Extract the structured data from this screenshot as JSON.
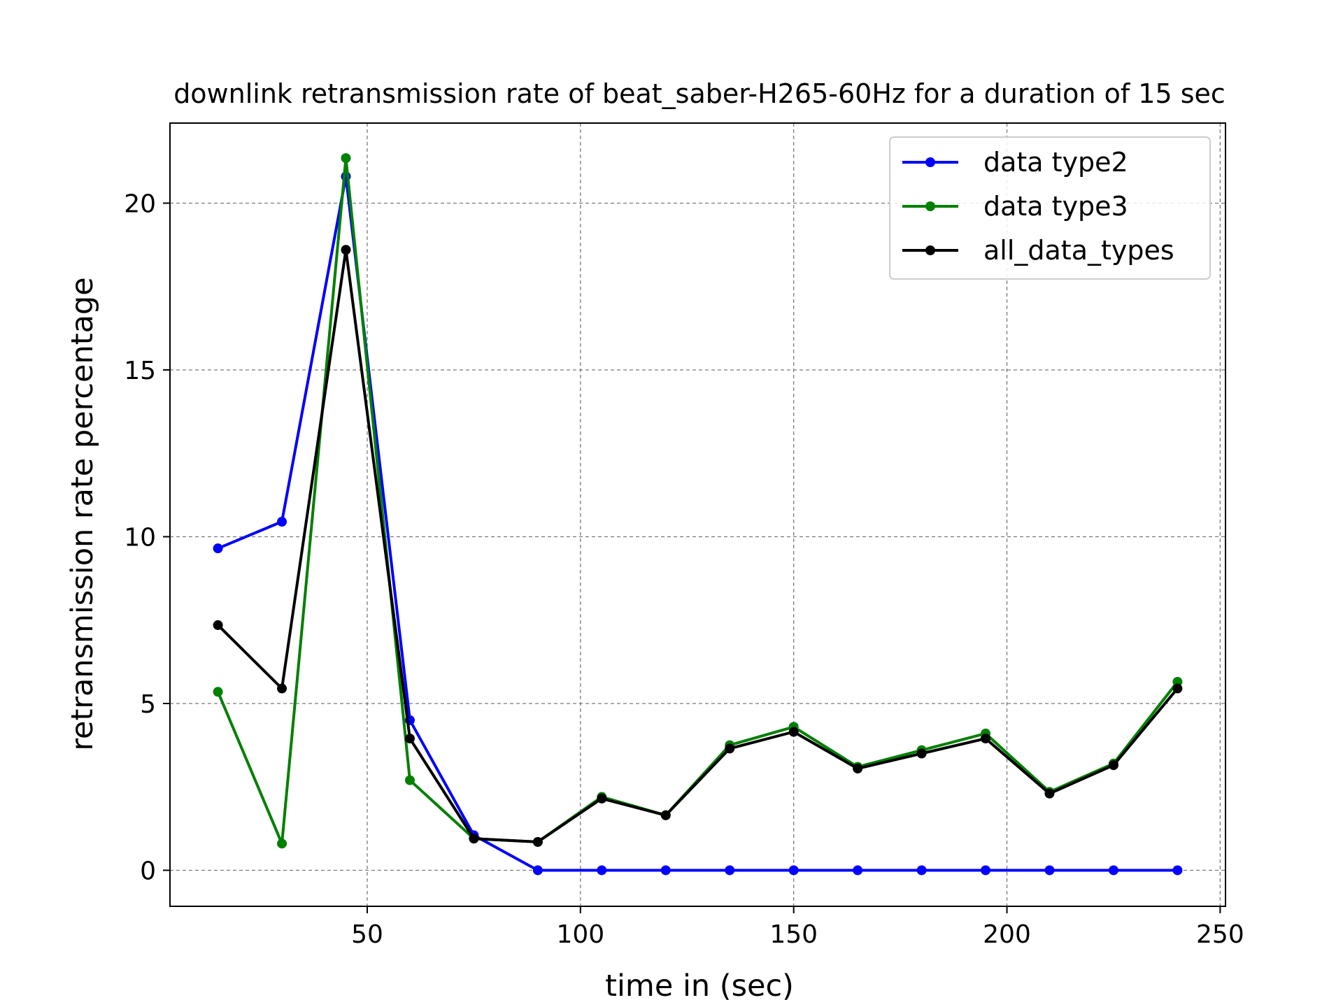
{
  "chart_data": {
    "type": "line",
    "title": "downlink retransmission rate of beat_saber-H265-60Hz for a duration of 15 sec",
    "xlabel": "time in (sec)",
    "ylabel": "retransmission rate percentage",
    "xlim": [
      3.75,
      251.25
    ],
    "ylim": [
      -1.08,
      22.4
    ],
    "xticks": [
      50,
      100,
      150,
      200,
      250
    ],
    "yticks": [
      0,
      5,
      10,
      15,
      20
    ],
    "grid": true,
    "legend_position": "top-right",
    "x": [
      15,
      30,
      45,
      60,
      75,
      90,
      105,
      120,
      135,
      150,
      165,
      180,
      195,
      210,
      225,
      240
    ],
    "series": [
      {
        "name": "data type2",
        "color": "#0000ff",
        "values": [
          9.65,
          10.45,
          20.8,
          4.5,
          1.05,
          0.0,
          0.0,
          0.0,
          0.0,
          0.0,
          0.0,
          0.0,
          0.0,
          0.0,
          0.0,
          0.0
        ]
      },
      {
        "name": "data type3",
        "color": "#008000",
        "values": [
          5.35,
          0.8,
          21.35,
          2.7,
          0.95,
          0.85,
          2.2,
          1.65,
          3.75,
          4.3,
          3.1,
          3.6,
          4.1,
          2.35,
          3.2,
          5.65
        ]
      },
      {
        "name": "all_data_types",
        "color": "#000000",
        "values": [
          7.35,
          5.45,
          18.6,
          3.95,
          0.95,
          0.85,
          2.15,
          1.65,
          3.65,
          4.15,
          3.05,
          3.5,
          3.95,
          2.3,
          3.15,
          5.45
        ]
      }
    ]
  }
}
